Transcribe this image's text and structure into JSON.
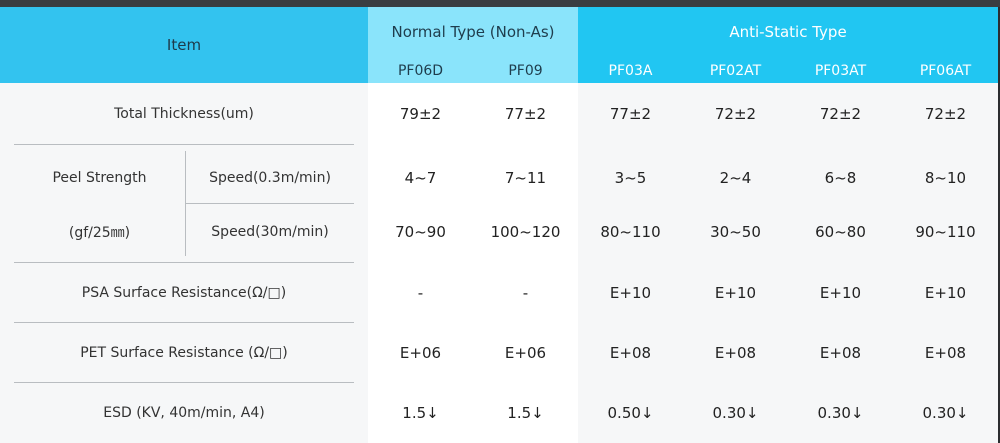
{
  "header": {
    "item_label": "Item",
    "normal_group": "Normal Type (Non-As)",
    "anti_group": "Anti-Static Type",
    "columns": [
      "PF06D",
      "PF09",
      "PF03A",
      "PF02AT",
      "PF03AT",
      "PF06AT"
    ]
  },
  "rows": {
    "thickness": {
      "label": "Total Thickness(um)",
      "values": [
        "79±2",
        "77±2",
        "77±2",
        "72±2",
        "72±2",
        "72±2"
      ]
    },
    "peel": {
      "label_1": "Peel Strength",
      "label_2": "(gf/25㎜)",
      "speed_a": {
        "label": "Speed(0.3m/min)",
        "values": [
          "4~7",
          "7~11",
          "3~5",
          "2~4",
          "6~8",
          "8~10"
        ]
      },
      "speed_b": {
        "label": "Speed(30m/min)",
        "values": [
          "70~90",
          "100~120",
          "80~110",
          "30~50",
          "60~80",
          "90~110"
        ]
      }
    },
    "psa": {
      "label": "PSA Surface Resistance(Ω/□)",
      "values": [
        "-",
        "-",
        "E+10",
        "E+10",
        "E+10",
        "E+10"
      ]
    },
    "pet": {
      "label": "PET Surface Resistance (Ω/□)",
      "values": [
        "E+06",
        "E+06",
        "E+08",
        "E+08",
        "E+08",
        "E+08"
      ]
    },
    "esd": {
      "label": "ESD (KV, 40m/min, A4)",
      "values": [
        "1.5↓",
        "1.5↓",
        "0.50↓",
        "0.30↓",
        "0.30↓",
        "0.30↓"
      ]
    }
  },
  "colors": {
    "item_header": "#33c3ef",
    "normal_header": "#8ae4fb",
    "anti_header": "#21c6f2",
    "body_bg": "#f6f7f8",
    "normal_body_bg": "#ffffff"
  }
}
